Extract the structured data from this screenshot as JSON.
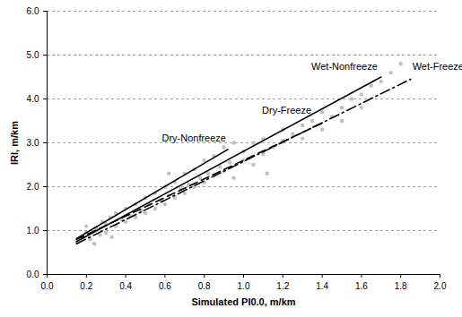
{
  "chart_data": {
    "type": "scatter",
    "x_label": "Simulated PI0.0, m/km",
    "y_label": "IRI, m/km",
    "xlim": [
      0,
      2.0
    ],
    "ylim": [
      0,
      6.0
    ],
    "xticks": [
      {
        "value": 0,
        "label": "0.0"
      },
      {
        "value": 0.2,
        "label": "0.2"
      },
      {
        "value": 0.4,
        "label": "0.4"
      },
      {
        "value": 0.6,
        "label": "0.6"
      },
      {
        "value": 0.8,
        "label": "0.8"
      },
      {
        "value": 1.0,
        "label": "1.0"
      },
      {
        "value": 1.2,
        "label": "1.2"
      },
      {
        "value": 1.4,
        "label": "1.4"
      },
      {
        "value": 1.6,
        "label": "1.6"
      },
      {
        "value": 1.8,
        "label": "1.8"
      },
      {
        "value": 2.0,
        "label": "2.0"
      }
    ],
    "yticks": [
      {
        "value": 0,
        "label": "0.0"
      },
      {
        "value": 1,
        "label": "1.0"
      },
      {
        "value": 2,
        "label": "2.0"
      },
      {
        "value": 3,
        "label": "3.0"
      },
      {
        "value": 4,
        "label": "4.0"
      },
      {
        "value": 5,
        "label": "5.0"
      },
      {
        "value": 6,
        "label": "6.0"
      }
    ],
    "grid": true,
    "series": [
      {
        "type": "scatter",
        "color": "#c0c0c0",
        "marker": "circle",
        "x": [
          0.15,
          0.18,
          0.2,
          0.2,
          0.22,
          0.24,
          0.25,
          0.27,
          0.28,
          0.3,
          0.3,
          0.32,
          0.33,
          0.35,
          0.35,
          0.38,
          0.4,
          0.4,
          0.42,
          0.45,
          0.45,
          0.48,
          0.5,
          0.5,
          0.52,
          0.55,
          0.55,
          0.58,
          0.6,
          0.6,
          0.62,
          0.62,
          0.65,
          0.65,
          0.68,
          0.7,
          0.7,
          0.72,
          0.75,
          0.75,
          0.78,
          0.8,
          0.8,
          0.82,
          0.85,
          0.85,
          0.88,
          0.9,
          0.9,
          0.93,
          0.95,
          0.95,
          1.0,
          1.0,
          1.05,
          1.05,
          1.1,
          1.1,
          1.12,
          1.15,
          1.2,
          1.2,
          1.25,
          1.3,
          1.3,
          1.35,
          1.4,
          1.4,
          1.45,
          1.5,
          1.5,
          1.55,
          1.6,
          1.6,
          1.65,
          1.7,
          1.75,
          1.8
        ],
        "values": [
          0.75,
          0.85,
          0.95,
          1.1,
          0.8,
          0.7,
          1.05,
          0.9,
          1.2,
          1.15,
          0.95,
          1.3,
          0.85,
          1.1,
          1.4,
          1.25,
          1.5,
          1.2,
          1.35,
          1.6,
          1.3,
          1.45,
          1.75,
          1.4,
          1.6,
          1.85,
          1.5,
          1.7,
          2.0,
          1.6,
          1.8,
          2.3,
          2.1,
          1.75,
          1.95,
          2.3,
          1.85,
          2.05,
          2.4,
          2.0,
          2.2,
          2.6,
          2.1,
          2.3,
          2.7,
          2.25,
          2.45,
          2.9,
          2.35,
          2.55,
          2.2,
          3.0,
          2.6,
          2.8,
          2.5,
          3.0,
          2.75,
          3.1,
          2.3,
          2.9,
          3.05,
          3.3,
          3.2,
          3.4,
          3.1,
          3.5,
          3.3,
          3.7,
          3.6,
          3.8,
          3.5,
          4.0,
          4.1,
          3.8,
          4.3,
          4.4,
          4.6,
          4.8
        ]
      },
      {
        "name": "Dry-Nonfreeze",
        "type": "line",
        "color": "#000000",
        "line_style": "solid",
        "x": [
          0.15,
          0.92
        ],
        "values": [
          0.82,
          2.85
        ]
      },
      {
        "name": "Dry-Freeze",
        "type": "line",
        "color": "#000000",
        "line_style": "dashed",
        "x": [
          0.15,
          1.4
        ],
        "values": [
          0.8,
          3.45
        ]
      },
      {
        "name": "Wet-Nonfreeze",
        "type": "line",
        "color": "#000000",
        "line_style": "solid",
        "x": [
          0.15,
          1.7
        ],
        "values": [
          0.75,
          4.5
        ]
      },
      {
        "name": "Wet-Freeze",
        "type": "line",
        "color": "#000000",
        "line_style": "dashdot",
        "x": [
          0.15,
          1.85
        ],
        "values": [
          0.7,
          4.45
        ]
      }
    ]
  }
}
